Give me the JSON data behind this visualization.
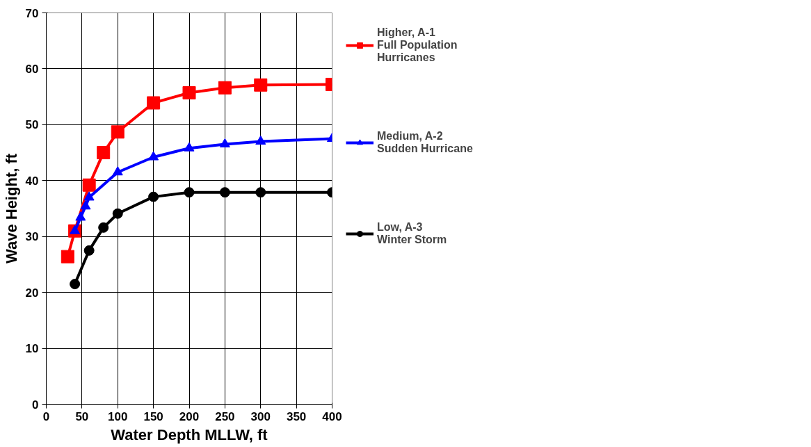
{
  "chart_data": {
    "type": "line",
    "xlabel": "Water Depth MLLW, ft",
    "ylabel": "Wave Height, ft",
    "xlim": [
      0,
      400
    ],
    "xticks": [
      0,
      50,
      100,
      150,
      200,
      250,
      300,
      350,
      400
    ],
    "ylim": [
      0,
      70
    ],
    "yticks": [
      0,
      10,
      20,
      30,
      40,
      50,
      60,
      70
    ],
    "grid": true,
    "legend": "right",
    "line_style": "solid",
    "series": [
      {
        "name": "Higher, A-1\nFull Population\nHurricanes",
        "color": "#ff0000",
        "marker": "square",
        "x": [
          30,
          40,
          60,
          80,
          100,
          150,
          200,
          250,
          300,
          400
        ],
        "values": [
          26.4,
          31,
          39.2,
          45,
          48.7,
          53.9,
          55.7,
          56.6,
          57.1,
          57.2
        ]
      },
      {
        "name": "Medium, A-2\nSudden Hurricane",
        "color": "#0000ff",
        "marker": "triangle",
        "x": [
          40,
          48,
          55,
          60,
          100,
          150,
          200,
          250,
          300,
          400
        ],
        "values": [
          31,
          33.4,
          35.4,
          37,
          41.5,
          44.2,
          45.8,
          46.5,
          47,
          47.5
        ]
      },
      {
        "name": "Low, A-3\nWinter Storm",
        "color": "#000000",
        "marker": "circle",
        "x": [
          40,
          60,
          80,
          100,
          150,
          200,
          250,
          300,
          400
        ],
        "values": [
          21.5,
          27.5,
          31.6,
          34.1,
          37.1,
          37.9,
          37.9,
          37.9,
          37.9
        ]
      }
    ]
  }
}
